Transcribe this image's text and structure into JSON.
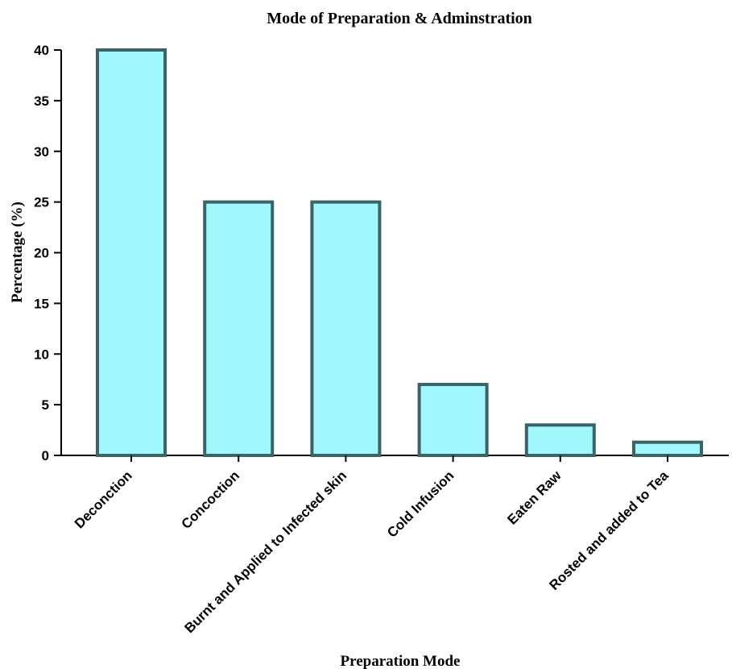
{
  "chart_data": {
    "type": "bar",
    "title": "Mode of Preparation & Adminstration",
    "xlabel": "Preparation Mode",
    "ylabel": "Percentage (%)",
    "categories": [
      "Deconction",
      "Concoction",
      "Burnt and Applied to Infected skin",
      "Cold Infusion",
      "Eaten Raw",
      "Rosted and added to Tea"
    ],
    "values": [
      40,
      25,
      25,
      7,
      3,
      1.3
    ],
    "ylim": [
      0,
      40
    ],
    "yticks": [
      "0",
      "5",
      "10",
      "15",
      "20",
      "25",
      "30",
      "35",
      "40"
    ],
    "grid": false,
    "colors": {
      "bar_fill": "#a0f8fc",
      "bar_stroke": "#3a6466",
      "axis": "#000000"
    }
  }
}
